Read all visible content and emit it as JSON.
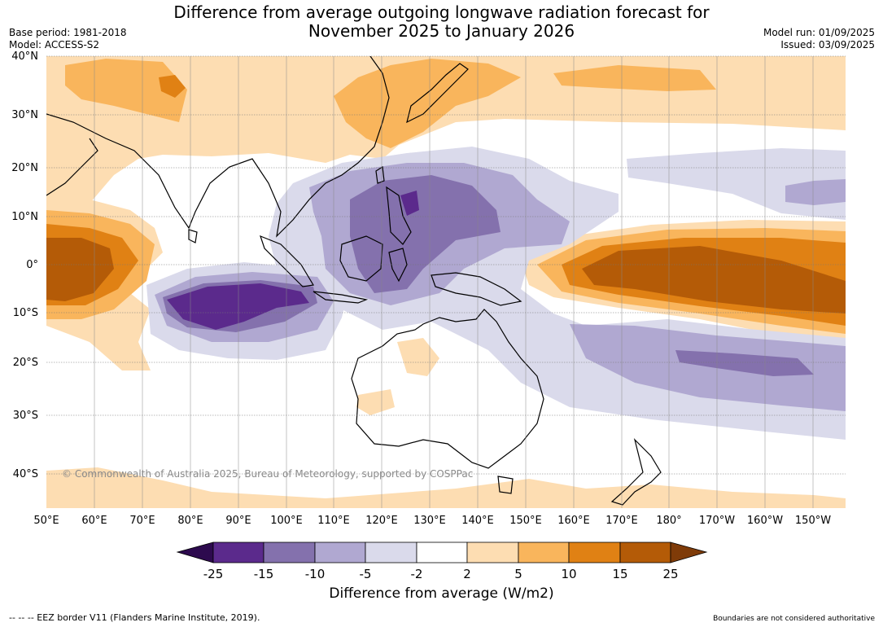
{
  "title_line1": "Difference from average outgoing longwave radiation forecast for",
  "title_line2": "November 2025 to January 2026",
  "meta_left": {
    "base_period": "Base period: 1981-2018",
    "model": "Model: ACCESS-S2"
  },
  "meta_right": {
    "model_run": "Model run: 01/09/2025",
    "issued": "Issued: 03/09/2025"
  },
  "lat_labels": [
    "40°N",
    "30°N",
    "20°N",
    "10°N",
    "0°",
    "10°S",
    "20°S",
    "30°S",
    "40°S"
  ],
  "lon_labels": [
    "50°E",
    "60°E",
    "70°E",
    "80°E",
    "90°E",
    "100°E",
    "110°E",
    "120°E",
    "130°E",
    "140°E",
    "150°E",
    "160°E",
    "170°E",
    "180°",
    "170°W",
    "160°W",
    "150°W"
  ],
  "copyright": "© Commonwealth of Australia 2025, Bureau of Meteorology, supported by COSPPac",
  "colorbar": {
    "ticks": [
      "-25",
      "-15",
      "-10",
      "-5",
      "-2",
      "2",
      "5",
      "10",
      "15",
      "25"
    ],
    "colors": [
      "#2d0a4e",
      "#5b2a8c",
      "#8471ad",
      "#b0a8d1",
      "#dadaeb",
      "#ffffff",
      "#fdddb2",
      "#f9b55c",
      "#e08114",
      "#b45b07",
      "#7f3b08"
    ],
    "label": "Difference from average (W/m2)"
  },
  "footer_left": "--  --  -- EEZ border V11 (Flanders Marine Institute, 2019).",
  "footer_right": "Boundaries are not considered authoritative"
}
